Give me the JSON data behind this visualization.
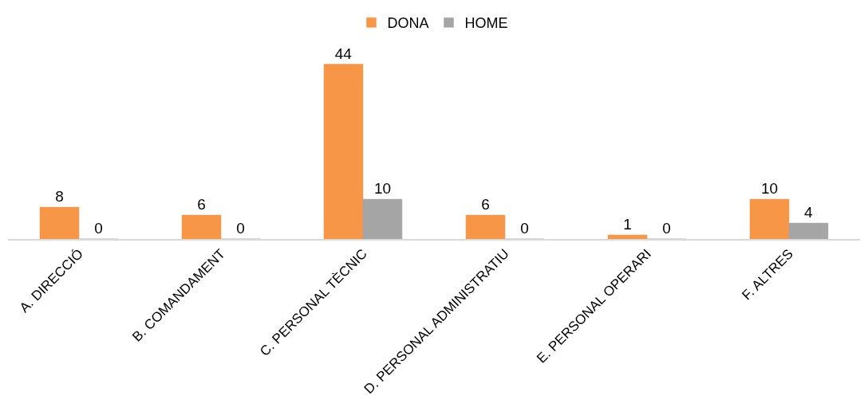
{
  "chart_data": {
    "type": "bar",
    "categories": [
      "A. DIRECCIÓ",
      "B. COMANDAMENT",
      "C. PERSONAL TÈCNIC",
      "D. PERSONAL ADMINISTRATIU",
      "E. PERSONAL OPERARI",
      "F. ALTRES"
    ],
    "series": [
      {
        "name": "DONA",
        "color": "#f79646",
        "values": [
          8,
          6,
          44,
          6,
          1,
          10
        ]
      },
      {
        "name": "HOME",
        "color": "#a5a5a5",
        "values": [
          0,
          0,
          10,
          0,
          0,
          4
        ]
      }
    ],
    "data_labels": true,
    "legend": "top"
  }
}
